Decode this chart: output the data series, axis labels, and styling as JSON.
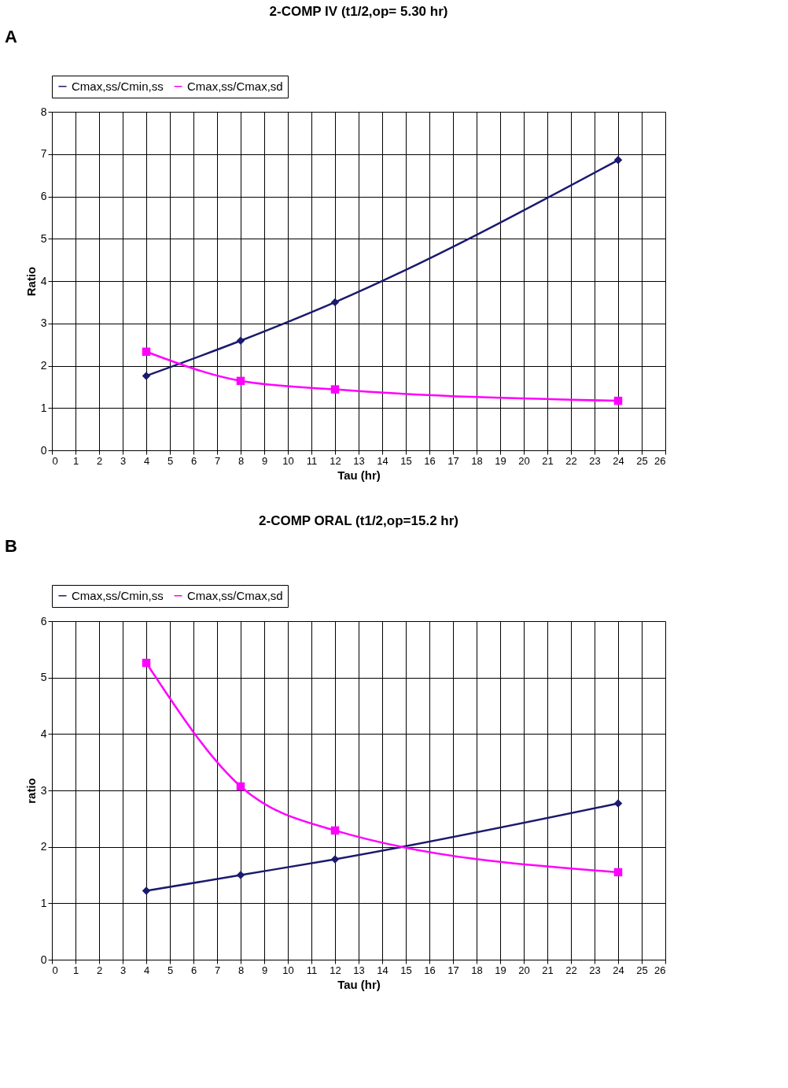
{
  "chart_data": [
    {
      "type": "line",
      "title": "2-COMP IV (t1/2,op= 5.30 hr)",
      "xlabel": "Tau (hr)",
      "ylabel": "Ratio",
      "annotations": [
        "A"
      ],
      "x": [
        4,
        8,
        12,
        24
      ],
      "series": [
        {
          "name": "Cmax,ss/Cmin,ss",
          "color": "#1a1a6e",
          "marker": "diamond",
          "values": [
            1.76,
            2.59,
            3.5,
            6.86
          ]
        },
        {
          "name": "Cmax,ss/Cmax,sd",
          "color": "#ff00ff",
          "marker": "square",
          "values": [
            2.33,
            1.64,
            1.44,
            1.17
          ]
        }
      ],
      "xlim": [
        0,
        26
      ],
      "xticks": [
        0,
        1,
        2,
        3,
        4,
        5,
        6,
        7,
        8,
        9,
        10,
        11,
        12,
        13,
        14,
        15,
        16,
        17,
        18,
        19,
        20,
        21,
        22,
        23,
        24,
        25,
        26
      ],
      "ylim": [
        0,
        8
      ],
      "yticks": [
        0,
        1,
        2,
        3,
        4,
        5,
        6,
        7,
        8
      ],
      "grid": true,
      "legend": "top",
      "line_style": "solid"
    },
    {
      "type": "line",
      "title": "2-COMP ORAL (t1/2,op=15.2 hr)",
      "xlabel": "Tau (hr)",
      "ylabel": "ratio",
      "annotations": [
        "B"
      ],
      "x": [
        4,
        8,
        12,
        24
      ],
      "series": [
        {
          "name": "Cmax,ss/Cmin,ss",
          "color": "#1a1a6e",
          "marker": "diamond",
          "values": [
            1.22,
            1.5,
            1.78,
            2.77
          ]
        },
        {
          "name": "Cmax,ss/Cmax,sd",
          "color": "#ff00ff",
          "marker": "square",
          "values": [
            5.26,
            3.07,
            2.29,
            1.55
          ]
        }
      ],
      "xlim": [
        0,
        26
      ],
      "xticks": [
        0,
        1,
        2,
        3,
        4,
        5,
        6,
        7,
        8,
        9,
        10,
        11,
        12,
        13,
        14,
        15,
        16,
        17,
        18,
        19,
        20,
        21,
        22,
        23,
        24,
        25,
        26
      ],
      "ylim": [
        0,
        6
      ],
      "yticks": [
        0,
        1,
        2,
        3,
        4,
        5,
        6
      ],
      "grid": true,
      "legend": "top",
      "line_style": "solid"
    }
  ]
}
